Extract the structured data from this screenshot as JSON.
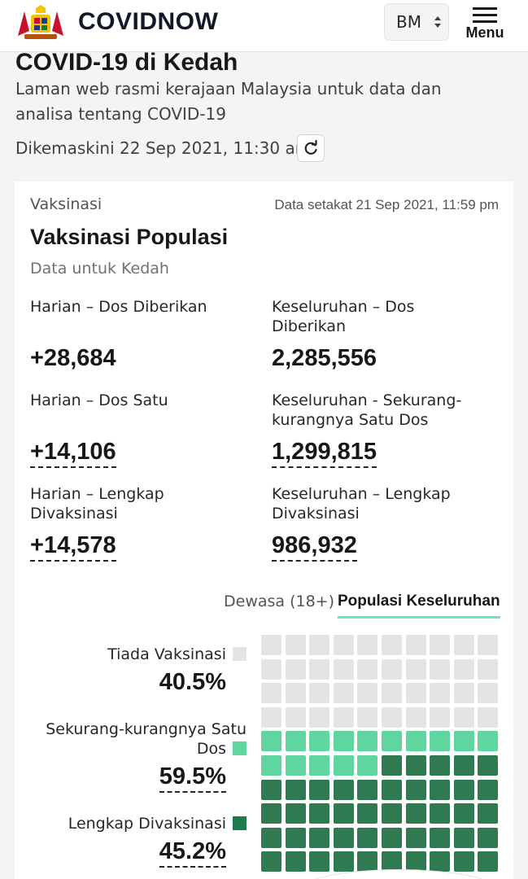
{
  "header": {
    "brand": "COVIDNOW",
    "language": "BM",
    "menu_label": "Menu"
  },
  "page": {
    "title": "COVID-19 di Kedah",
    "subtitle": "Laman web rasmi kerajaan Malaysia untuk data dan analisa tentang COVID-19",
    "updated": "Dikemaskini 22 Sep 2021, 11:30 am"
  },
  "card": {
    "category": "Vaksinasi",
    "as_of": "Data setakat 21 Sep 2021, 11:59 pm",
    "title": "Vaksinasi Populasi",
    "region": "Data untuk Kedah",
    "stats": [
      {
        "label": "Harian – Dos Diberikan",
        "value": "+28,684"
      },
      {
        "label": "Keseluruhan – Dos Diberikan",
        "value": "2,285,556"
      },
      {
        "label": "Harian – Dos Satu",
        "value": "+14,106"
      },
      {
        "label": "Keseluruhan - Sekurang-kurangnya Satu Dos",
        "value": "1,299,815"
      },
      {
        "label": "Harian – Lengkap Divaksinasi",
        "value": "+14,578"
      },
      {
        "label": "Keseluruhan – Lengkap Divaksinasi",
        "value": "986,932"
      }
    ],
    "tabs": [
      {
        "label": "Dewasa (18+)",
        "active": false
      },
      {
        "label": "Populasi Keseluruhan",
        "active": true
      }
    ],
    "legend": [
      {
        "label": "Tiada Vaksinasi",
        "value": "40.5%",
        "color": "#e4e4e7"
      },
      {
        "label": "Sekurang-kurangnya Satu Dos",
        "value": "59.5%",
        "color": "#5fd6a0"
      },
      {
        "label": "Lengkap Divaksinasi",
        "value": "45.2%",
        "color": "#1f7a4f"
      }
    ]
  },
  "waffle": {
    "none_pct": 40.5,
    "at_least_one_pct": 59.5,
    "full_pct": 45.2,
    "colors": {
      "none": "#e4e4e7",
      "partial": "#5fd6a0",
      "full": "#2f7a50"
    }
  }
}
